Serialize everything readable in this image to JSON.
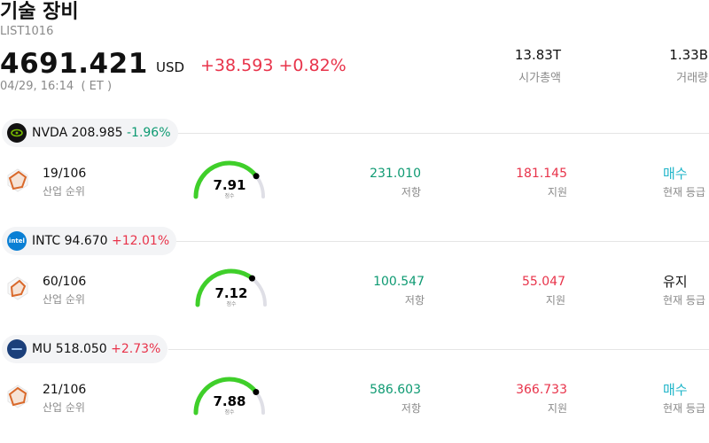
{
  "header": {
    "title": "기술 장비",
    "code": "LIST1016",
    "price": "4691.421",
    "currency": "USD",
    "change": "+38.593 +0.82%",
    "timestamp": "04/29, 16:14  ( ET )",
    "market_cap": {
      "value": "13.83T",
      "label": "시가총액"
    },
    "volume": {
      "value": "1.33B",
      "label": "거래량"
    }
  },
  "labels": {
    "rank": "산업 순위",
    "resistance": "저항",
    "support": "지원",
    "rating": "현재 등급",
    "score": "점수"
  },
  "colors": {
    "up": "#e8334a",
    "down": "#0e9a72",
    "buy": "#1fb5c9",
    "gauge": "#3fcf2a"
  },
  "stocks": [
    {
      "ticker": "NVDA",
      "price": "208.985",
      "change": "-1.96%",
      "rank": "19/106",
      "score": "7.91",
      "score_value": 7.91,
      "resistance": "231.010",
      "support": "181.145",
      "rating": "매수",
      "logo_icon": "nvidia-logo-icon"
    },
    {
      "ticker": "INTC",
      "price": "94.670",
      "change": "+12.01%",
      "rank": "60/106",
      "score": "7.12",
      "score_value": 7.12,
      "resistance": "100.547",
      "support": "55.047",
      "rating": "유지",
      "logo_icon": "intel-logo-icon"
    },
    {
      "ticker": "MU",
      "price": "518.050",
      "change": "+2.73%",
      "rank": "21/106",
      "score": "7.88",
      "score_value": 7.88,
      "resistance": "586.603",
      "support": "366.733",
      "rating": "매수",
      "logo_icon": "micron-logo-icon"
    }
  ]
}
